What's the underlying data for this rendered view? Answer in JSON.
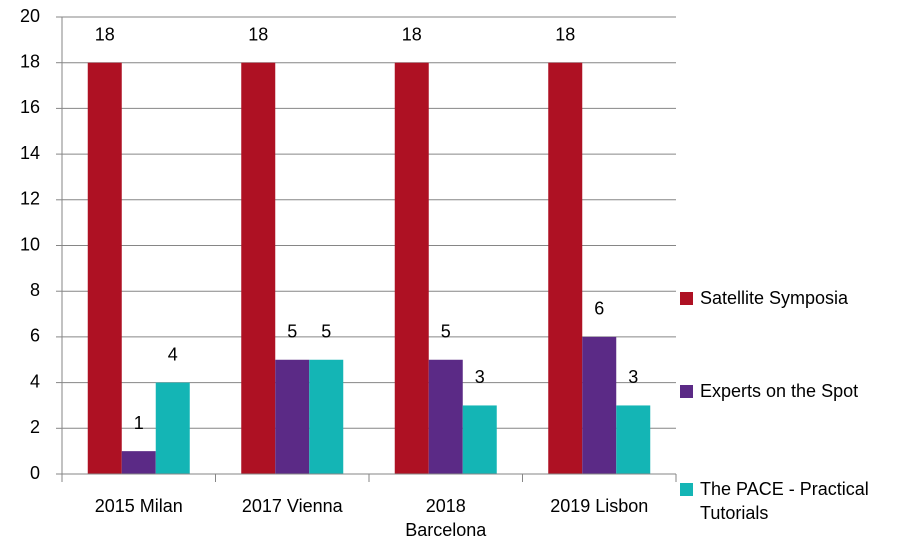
{
  "chart_data": {
    "type": "bar",
    "categories": [
      "2015 Milan",
      "2017 Vienna",
      "2018 Barcelona",
      "2019 Lisbon"
    ],
    "series": [
      {
        "name": "Satellite Symposia",
        "color": "#ae1123",
        "values": [
          18,
          18,
          18,
          18
        ]
      },
      {
        "name": "Experts on the Spot",
        "color": "#5b2a86",
        "values": [
          1,
          5,
          5,
          6
        ]
      },
      {
        "name": "The PACE - Practical Tutorials",
        "color": "#14b5b5",
        "values": [
          4,
          5,
          3,
          3
        ]
      }
    ],
    "ylim": [
      0,
      20
    ],
    "yticks": [
      0,
      2,
      4,
      6,
      8,
      10,
      12,
      14,
      16,
      18,
      20
    ],
    "grid": true,
    "legend": "right"
  }
}
